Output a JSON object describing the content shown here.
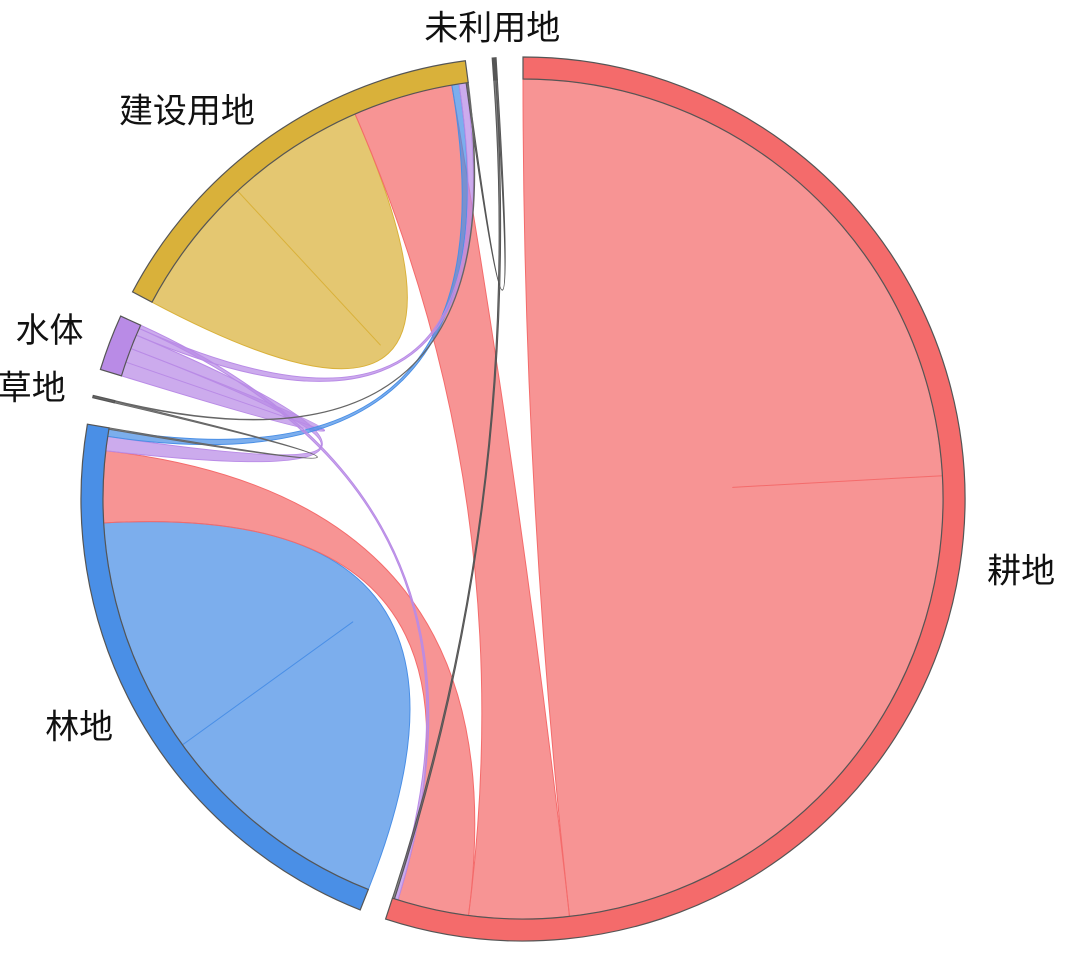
{
  "chart_data": {
    "type": "chord",
    "categories": [
      "耕地",
      "林地",
      "草地",
      "水体",
      "建设用地",
      "未利用地"
    ],
    "colors": [
      "#f46b6b",
      "#4a8fe6",
      "#666666",
      "#b98be6",
      "#d9b13a",
      "#555555"
    ],
    "links": [
      {
        "source": 0,
        "target": 0,
        "value": 88
      },
      {
        "source": 1,
        "target": 1,
        "value": 33
      },
      {
        "source": 4,
        "target": 4,
        "value": 19.5
      },
      {
        "source": 0,
        "target": 4,
        "value": 14
      },
      {
        "source": 0,
        "target": 1,
        "value": 10
      },
      {
        "source": 3,
        "target": 3,
        "value": 2
      },
      {
        "source": 3,
        "target": 1,
        "value": 2
      },
      {
        "source": 1,
        "target": 4,
        "value": 1
      },
      {
        "source": 3,
        "target": 4,
        "value": 1
      },
      {
        "source": 3,
        "target": 0,
        "value": 0.5
      },
      {
        "source": 5,
        "target": 0,
        "value": 0.3
      },
      {
        "source": 2,
        "target": 1,
        "value": 0.2
      },
      {
        "source": 5,
        "target": 4,
        "value": 0.2
      },
      {
        "source": 2,
        "target": 4,
        "value": 0.1
      }
    ]
  }
}
